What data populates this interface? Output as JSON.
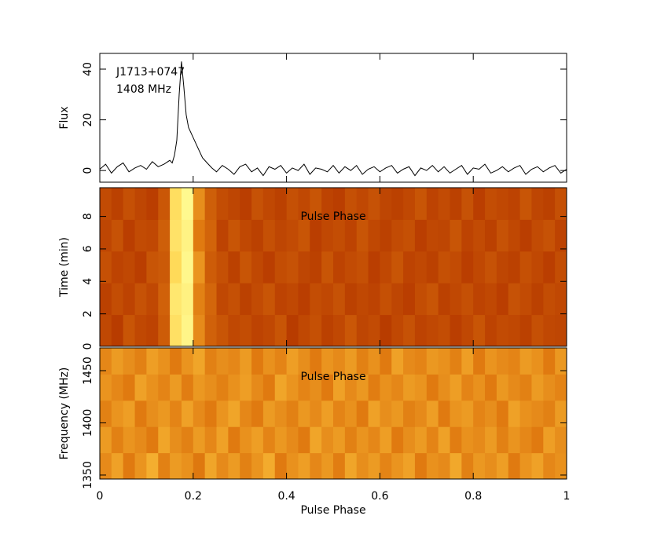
{
  "chart_data": [
    {
      "type": "line",
      "ylabel": "Flux",
      "annotations": [
        "J1713+0747",
        "1408 MHz"
      ],
      "color": "#000000",
      "xlim": [
        0,
        1
      ],
      "xticks": [
        0,
        0.2,
        0.4,
        0.6,
        0.8,
        1
      ],
      "ylim": [
        -4.6,
        46.2
      ],
      "yticks": [
        0,
        20,
        40
      ],
      "x": [
        0,
        0.0125,
        0.025,
        0.0375,
        0.05,
        0.0625,
        0.075,
        0.0875,
        0.1,
        0.1125,
        0.125,
        0.1375,
        0.15,
        0.155,
        0.16,
        0.165,
        0.17,
        0.175,
        0.18,
        0.185,
        0.19,
        0.2,
        0.21,
        0.22,
        0.23,
        0.24,
        0.25,
        0.2625,
        0.275,
        0.2875,
        0.3,
        0.3125,
        0.325,
        0.3375,
        0.35,
        0.3625,
        0.375,
        0.3875,
        0.4,
        0.4125,
        0.425,
        0.4375,
        0.45,
        0.4625,
        0.475,
        0.4875,
        0.5,
        0.5125,
        0.525,
        0.5375,
        0.55,
        0.5625,
        0.575,
        0.5875,
        0.6,
        0.6125,
        0.625,
        0.6375,
        0.65,
        0.6625,
        0.675,
        0.6875,
        0.7,
        0.7125,
        0.725,
        0.7375,
        0.75,
        0.7625,
        0.775,
        0.7875,
        0.8,
        0.8125,
        0.825,
        0.8375,
        0.85,
        0.8625,
        0.875,
        0.8875,
        0.9,
        0.9125,
        0.925,
        0.9375,
        0.95,
        0.9625,
        0.975,
        0.9875,
        1
      ],
      "values": [
        0.5,
        2.5,
        -1,
        1.5,
        3,
        -0.5,
        1,
        2,
        0.5,
        3.5,
        1.5,
        2.5,
        4,
        3,
        6,
        12,
        30,
        43,
        33,
        22,
        17,
        13,
        9,
        5,
        3,
        1,
        -0.5,
        2,
        0.5,
        -1.5,
        1.5,
        2.5,
        -0.5,
        1,
        -2,
        1.5,
        0.5,
        2,
        -1,
        1,
        0,
        2.5,
        -1.5,
        1,
        0.5,
        -0.5,
        2,
        -1,
        1.5,
        0,
        2,
        -1.5,
        0.5,
        1.5,
        -0.5,
        1,
        2,
        -1,
        0.5,
        1.5,
        -2,
        1,
        0,
        2,
        -0.5,
        1.5,
        -1,
        0.5,
        2,
        -1.5,
        1,
        0.5,
        2.5,
        -1,
        0,
        1.5,
        -0.5,
        1,
        2,
        -1.5,
        0.5,
        1.5,
        -0.5,
        1,
        2,
        -1,
        0.5
      ]
    },
    {
      "type": "heatmap",
      "ylabel": "Time (min)",
      "annotations": [
        "Pulse Phase"
      ],
      "colormap": [
        "#6e1400",
        "#b83c00",
        "#e07a10",
        "#ffcc40",
        "#ffff9a"
      ],
      "xlim": [
        0,
        1
      ],
      "xticks": [
        0,
        0.2,
        0.4,
        0.6,
        0.8,
        1
      ],
      "ylim": [
        0,
        9.77
      ],
      "yticks": [
        0,
        2,
        4,
        6,
        8
      ],
      "values": [
        [
          0.3,
          0.25,
          0.35,
          0.3,
          0.28,
          0.38,
          0.85,
          0.95,
          0.55,
          0.4,
          0.35,
          0.3,
          0.32,
          0.28,
          0.3,
          0.35,
          0.25,
          0.3,
          0.33,
          0.27,
          0.3,
          0.36,
          0.29,
          0.31,
          0.25,
          0.3,
          0.34,
          0.28,
          0.3,
          0.32,
          0.26,
          0.3,
          0.35,
          0.28,
          0.31,
          0.3,
          0.27,
          0.33,
          0.3,
          0.29
        ],
        [
          0.27,
          0.32,
          0.28,
          0.34,
          0.3,
          0.4,
          0.88,
          0.93,
          0.52,
          0.42,
          0.3,
          0.33,
          0.27,
          0.31,
          0.35,
          0.28,
          0.3,
          0.26,
          0.32,
          0.3,
          0.34,
          0.27,
          0.3,
          0.28,
          0.33,
          0.29,
          0.26,
          0.32,
          0.35,
          0.27,
          0.3,
          0.33,
          0.28,
          0.3,
          0.26,
          0.34,
          0.31,
          0.27,
          0.32,
          0.3
        ],
        [
          0.33,
          0.28,
          0.3,
          0.26,
          0.35,
          0.37,
          0.82,
          0.96,
          0.58,
          0.38,
          0.33,
          0.27,
          0.35,
          0.3,
          0.26,
          0.32,
          0.34,
          0.29,
          0.27,
          0.35,
          0.28,
          0.31,
          0.33,
          0.26,
          0.3,
          0.35,
          0.28,
          0.3,
          0.27,
          0.33,
          0.31,
          0.26,
          0.3,
          0.34,
          0.29,
          0.27,
          0.33,
          0.3,
          0.26,
          0.32
        ],
        [
          0.29,
          0.34,
          0.26,
          0.31,
          0.3,
          0.39,
          0.86,
          0.94,
          0.5,
          0.41,
          0.28,
          0.35,
          0.3,
          0.27,
          0.33,
          0.29,
          0.31,
          0.35,
          0.26,
          0.3,
          0.32,
          0.28,
          0.35,
          0.3,
          0.27,
          0.31,
          0.33,
          0.26,
          0.3,
          0.29,
          0.35,
          0.28,
          0.31,
          0.27,
          0.34,
          0.3,
          0.26,
          0.31,
          0.34,
          0.28
        ],
        [
          0.31,
          0.27,
          0.33,
          0.29,
          0.26,
          0.36,
          0.84,
          0.97,
          0.56,
          0.39,
          0.32,
          0.29,
          0.26,
          0.34,
          0.3,
          0.27,
          0.33,
          0.3,
          0.35,
          0.28,
          0.26,
          0.33,
          0.3,
          0.34,
          0.29,
          0.27,
          0.3,
          0.35,
          0.28,
          0.31,
          0.27,
          0.34,
          0.26,
          0.32,
          0.3,
          0.28,
          0.35,
          0.29,
          0.27,
          0.33
        ]
      ]
    },
    {
      "type": "heatmap",
      "ylabel": "Frequency (MHz)",
      "xlabel": "Pulse Phase",
      "annotations": [
        "Pulse Phase"
      ],
      "colormap": [
        "#6e1400",
        "#b83c00",
        "#e07a10",
        "#ffcc40",
        "#ffff9a"
      ],
      "xlim": [
        0,
        1
      ],
      "xticks": [
        0,
        0.2,
        0.4,
        0.6,
        0.8,
        1
      ],
      "ylim": [
        1346.2,
        1471.8
      ],
      "yticks": [
        1350,
        1400,
        1450
      ],
      "values": [
        [
          0.55,
          0.62,
          0.5,
          0.58,
          0.66,
          0.52,
          0.6,
          0.57,
          0.49,
          0.63,
          0.55,
          0.6,
          0.52,
          0.58,
          0.65,
          0.5,
          0.57,
          0.61,
          0.54,
          0.59,
          0.51,
          0.63,
          0.56,
          0.6,
          0.53,
          0.58,
          0.62,
          0.5,
          0.57,
          0.55,
          0.64,
          0.52,
          0.59,
          0.56,
          0.61,
          0.5,
          0.58,
          0.62,
          0.54,
          0.57
        ],
        [
          0.6,
          0.52,
          0.58,
          0.55,
          0.5,
          0.63,
          0.56,
          0.52,
          0.6,
          0.54,
          0.62,
          0.5,
          0.57,
          0.61,
          0.53,
          0.59,
          0.55,
          0.5,
          0.63,
          0.56,
          0.6,
          0.52,
          0.58,
          0.54,
          0.61,
          0.5,
          0.56,
          0.6,
          0.53,
          0.62,
          0.51,
          0.57,
          0.55,
          0.6,
          0.52,
          0.58,
          0.54,
          0.5,
          0.61,
          0.56
        ],
        [
          0.52,
          0.58,
          0.61,
          0.5,
          0.56,
          0.59,
          0.53,
          0.62,
          0.55,
          0.5,
          0.58,
          0.63,
          0.54,
          0.5,
          0.6,
          0.56,
          0.52,
          0.59,
          0.55,
          0.61,
          0.53,
          0.57,
          0.5,
          0.62,
          0.56,
          0.59,
          0.52,
          0.55,
          0.61,
          0.5,
          0.58,
          0.6,
          0.53,
          0.56,
          0.5,
          0.62,
          0.57,
          0.55,
          0.52,
          0.6
        ],
        [
          0.58,
          0.54,
          0.5,
          0.62,
          0.57,
          0.53,
          0.6,
          0.51,
          0.59,
          0.56,
          0.52,
          0.57,
          0.61,
          0.55,
          0.5,
          0.63,
          0.58,
          0.53,
          0.56,
          0.5,
          0.62,
          0.55,
          0.59,
          0.51,
          0.57,
          0.54,
          0.6,
          0.58,
          0.5,
          0.56,
          0.61,
          0.53,
          0.57,
          0.5,
          0.59,
          0.55,
          0.52,
          0.6,
          0.56,
          0.53
        ],
        [
          0.54,
          0.6,
          0.56,
          0.52,
          0.61,
          0.57,
          0.5,
          0.58,
          0.63,
          0.52,
          0.56,
          0.54,
          0.6,
          0.5,
          0.57,
          0.53,
          0.61,
          0.56,
          0.5,
          0.58,
          0.55,
          0.6,
          0.52,
          0.57,
          0.5,
          0.62,
          0.55,
          0.53,
          0.59,
          0.57,
          0.52,
          0.61,
          0.5,
          0.58,
          0.55,
          0.53,
          0.6,
          0.57,
          0.5,
          0.59
        ]
      ]
    }
  ]
}
